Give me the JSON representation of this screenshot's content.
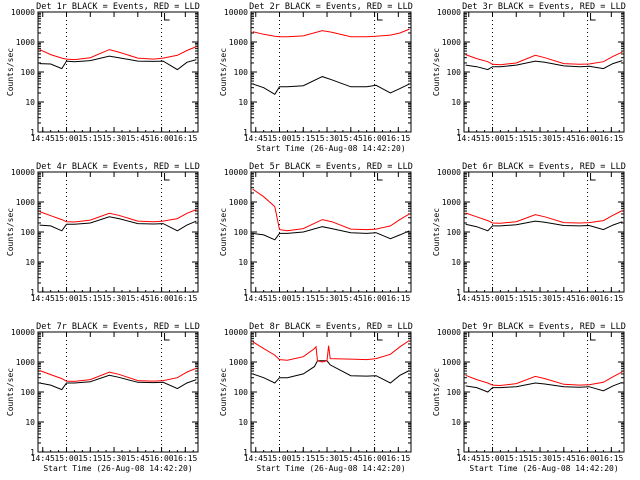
{
  "colors": {
    "events": "#000000",
    "lld": "#ff0000",
    "background": "#ffffff"
  },
  "chart_data": [
    {
      "type": "line",
      "title": "Det 1r BLACK = Events, RED = LLD",
      "xlabel": "",
      "ylabel": "Counts/sec",
      "yscale": "log",
      "ylim": [
        1,
        10000
      ],
      "xlim": [
        "14:42",
        "16:23"
      ],
      "x_tick_labels": [
        "14:45",
        "15:00",
        "15:15",
        "15:30",
        "15:45",
        "16:00",
        "16:15"
      ],
      "y_tick_labels": [
        "1",
        "10",
        "100",
        "1000",
        "10000"
      ],
      "dotted_lines": [
        "15:00",
        "16:00"
      ],
      "series": [
        {
          "name": "Events",
          "color": "#000000",
          "x": [
            "14:43",
            "14:50",
            "14:57",
            "15:00",
            "15:05",
            "15:15",
            "15:27",
            "15:33",
            "15:45",
            "15:55",
            "16:01",
            "16:10",
            "16:16",
            "16:22"
          ],
          "values": [
            190,
            185,
            130,
            230,
            220,
            240,
            340,
            300,
            230,
            225,
            230,
            120,
            210,
            260
          ]
        },
        {
          "name": "LLD",
          "color": "#ff0000",
          "x": [
            "14:43",
            "14:50",
            "14:57",
            "15:00",
            "15:05",
            "15:15",
            "15:27",
            "15:33",
            "15:45",
            "15:55",
            "16:01",
            "16:10",
            "16:16",
            "16:22"
          ],
          "values": [
            560,
            380,
            290,
            270,
            260,
            300,
            560,
            460,
            290,
            270,
            290,
            360,
            520,
            700
          ]
        }
      ]
    },
    {
      "type": "line",
      "title": "Det 2r BLACK = Events, RED = LLD",
      "xlabel": "Start Time (26-Aug-08 14:42:20)",
      "ylabel": "Counts/sec",
      "yscale": "log",
      "ylim": [
        1,
        10000
      ],
      "xlim": [
        "14:42",
        "16:23"
      ],
      "x_tick_labels": [
        "14:45",
        "15:00",
        "15:15",
        "15:30",
        "15:45",
        "16:00",
        "16:15"
      ],
      "y_tick_labels": [
        "1",
        "10",
        "100",
        "1000",
        "10000"
      ],
      "dotted_lines": [
        "15:00",
        "16:00"
      ],
      "series": [
        {
          "name": "Events",
          "color": "#000000",
          "x": [
            "14:43",
            "14:50",
            "14:57",
            "15:00",
            "15:05",
            "15:15",
            "15:27",
            "15:33",
            "15:45",
            "15:55",
            "16:01",
            "16:10",
            "16:16",
            "16:22"
          ],
          "values": [
            40,
            30,
            18,
            32,
            32,
            35,
            70,
            55,
            32,
            32,
            36,
            20,
            28,
            40
          ]
        },
        {
          "name": "LLD",
          "color": "#ff0000",
          "x": [
            "14:43",
            "14:50",
            "14:57",
            "15:00",
            "15:05",
            "15:15",
            "15:27",
            "15:33",
            "15:45",
            "15:55",
            "16:01",
            "16:10",
            "16:16",
            "16:22"
          ],
          "values": [
            2200,
            1800,
            1550,
            1500,
            1500,
            1600,
            2400,
            2100,
            1500,
            1500,
            1550,
            1700,
            2000,
            2700
          ]
        }
      ]
    },
    {
      "type": "line",
      "title": "Det 3r BLACK = Events, RED = LLD",
      "xlabel": "",
      "ylabel": "Counts/sec",
      "yscale": "log",
      "ylim": [
        1,
        10000
      ],
      "xlim": [
        "14:42",
        "16:23"
      ],
      "x_tick_labels": [
        "14:45",
        "15:00",
        "15:15",
        "15:30",
        "15:45",
        "16:00",
        "16:15"
      ],
      "y_tick_labels": [
        "1",
        "10",
        "100",
        "1000",
        "10000"
      ],
      "dotted_lines": [
        "15:00",
        "16:00"
      ],
      "series": [
        {
          "name": "Events",
          "color": "#000000",
          "x": [
            "14:43",
            "14:50",
            "14:57",
            "15:00",
            "15:05",
            "15:15",
            "15:27",
            "15:33",
            "15:45",
            "15:55",
            "16:01",
            "16:10",
            "16:16",
            "16:22"
          ],
          "values": [
            170,
            150,
            120,
            150,
            150,
            170,
            230,
            210,
            160,
            150,
            155,
            130,
            190,
            240
          ]
        },
        {
          "name": "LLD",
          "color": "#ff0000",
          "x": [
            "14:43",
            "14:50",
            "14:57",
            "15:00",
            "15:05",
            "15:15",
            "15:27",
            "15:33",
            "15:45",
            "15:55",
            "16:01",
            "16:10",
            "16:16",
            "16:22"
          ],
          "values": [
            380,
            280,
            220,
            180,
            175,
            200,
            360,
            300,
            190,
            180,
            185,
            220,
            330,
            460
          ]
        }
      ]
    },
    {
      "type": "line",
      "title": "Det 4r BLACK = Events, RED = LLD",
      "xlabel": "",
      "ylabel": "Counts/sec",
      "yscale": "log",
      "ylim": [
        1,
        10000
      ],
      "xlim": [
        "14:42",
        "16:23"
      ],
      "x_tick_labels": [
        "14:45",
        "15:00",
        "15:15",
        "15:30",
        "15:45",
        "16:00",
        "16:15"
      ],
      "y_tick_labels": [
        "1",
        "10",
        "100",
        "1000",
        "10000"
      ],
      "dotted_lines": [
        "15:00",
        "16:00"
      ],
      "series": [
        {
          "name": "Events",
          "color": "#000000",
          "x": [
            "14:43",
            "14:50",
            "14:57",
            "15:00",
            "15:05",
            "15:15",
            "15:27",
            "15:33",
            "15:45",
            "15:55",
            "16:01",
            "16:10",
            "16:16",
            "16:22"
          ],
          "values": [
            170,
            160,
            110,
            180,
            180,
            200,
            320,
            280,
            190,
            185,
            190,
            110,
            170,
            230
          ]
        },
        {
          "name": "LLD",
          "color": "#ff0000",
          "x": [
            "14:43",
            "14:50",
            "14:57",
            "15:00",
            "15:05",
            "15:15",
            "15:27",
            "15:33",
            "15:45",
            "15:55",
            "16:01",
            "16:10",
            "16:16",
            "16:22"
          ],
          "values": [
            480,
            350,
            260,
            220,
            215,
            250,
            420,
            360,
            230,
            220,
            230,
            280,
            420,
            560
          ]
        }
      ]
    },
    {
      "type": "line",
      "title": "Det 5r BLACK = Events, RED = LLD",
      "xlabel": "",
      "ylabel": "Counts/sec",
      "yscale": "log",
      "ylim": [
        1,
        10000
      ],
      "xlim": [
        "14:42",
        "16:23"
      ],
      "x_tick_labels": [
        "14:45",
        "15:00",
        "15:15",
        "15:30",
        "15:45",
        "16:00",
        "16:15"
      ],
      "y_tick_labels": [
        "1",
        "10",
        "100",
        "1000",
        "10000"
      ],
      "dotted_lines": [
        "15:00",
        "16:00"
      ],
      "series": [
        {
          "name": "Events",
          "color": "#000000",
          "x": [
            "14:43",
            "14:50",
            "14:57",
            "15:00",
            "15:05",
            "15:15",
            "15:27",
            "15:33",
            "15:45",
            "15:55",
            "16:01",
            "16:10",
            "16:16",
            "16:22"
          ],
          "values": [
            90,
            80,
            55,
            90,
            90,
            100,
            150,
            130,
            95,
            90,
            95,
            60,
            80,
            110
          ]
        },
        {
          "name": "LLD",
          "color": "#ff0000",
          "x": [
            "14:43",
            "14:50",
            "14:57",
            "15:00",
            "15:05",
            "15:15",
            "15:27",
            "15:33",
            "15:45",
            "15:55",
            "16:01",
            "16:10",
            "16:16",
            "16:22"
          ],
          "values": [
            2700,
            1500,
            700,
            120,
            110,
            130,
            260,
            220,
            125,
            120,
            125,
            160,
            260,
            400
          ]
        }
      ]
    },
    {
      "type": "line",
      "title": "Det 6r BLACK = Events, RED = LLD",
      "xlabel": "",
      "ylabel": "Counts/sec",
      "yscale": "log",
      "ylim": [
        1,
        10000
      ],
      "xlim": [
        "14:42",
        "16:23"
      ],
      "x_tick_labels": [
        "14:45",
        "15:00",
        "15:15",
        "15:30",
        "15:45",
        "16:00",
        "16:15"
      ],
      "y_tick_labels": [
        "1",
        "10",
        "100",
        "1000",
        "10000"
      ],
      "dotted_lines": [
        "15:00",
        "16:00"
      ],
      "series": [
        {
          "name": "Events",
          "color": "#000000",
          "x": [
            "14:43",
            "14:50",
            "14:57",
            "15:00",
            "15:05",
            "15:15",
            "15:27",
            "15:33",
            "15:45",
            "15:55",
            "16:01",
            "16:10",
            "16:16",
            "16:22"
          ],
          "values": [
            180,
            150,
            110,
            160,
            160,
            175,
            230,
            210,
            165,
            160,
            165,
            120,
            170,
            220
          ]
        },
        {
          "name": "LLD",
          "color": "#ff0000",
          "x": [
            "14:43",
            "14:50",
            "14:57",
            "15:00",
            "15:05",
            "15:15",
            "15:27",
            "15:33",
            "15:45",
            "15:55",
            "16:01",
            "16:10",
            "16:16",
            "16:22"
          ],
          "values": [
            430,
            320,
            240,
            200,
            195,
            220,
            380,
            320,
            205,
            200,
            205,
            240,
            360,
            520
          ]
        }
      ]
    },
    {
      "type": "line",
      "title": "Det 7r BLACK = Events, RED = LLD",
      "xlabel": "Start Time (26-Aug-08 14:42:20)",
      "ylabel": "Counts/sec",
      "yscale": "log",
      "ylim": [
        1,
        10000
      ],
      "xlim": [
        "14:42",
        "16:23"
      ],
      "x_tick_labels": [
        "14:45",
        "15:00",
        "15:15",
        "15:30",
        "15:45",
        "16:00",
        "16:15"
      ],
      "y_tick_labels": [
        "1",
        "10",
        "100",
        "1000",
        "10000"
      ],
      "dotted_lines": [
        "15:00",
        "16:00"
      ],
      "series": [
        {
          "name": "Events",
          "color": "#000000",
          "x": [
            "14:43",
            "14:50",
            "14:57",
            "15:00",
            "15:05",
            "15:15",
            "15:27",
            "15:33",
            "15:45",
            "15:55",
            "16:01",
            "16:10",
            "16:16",
            "16:22"
          ],
          "values": [
            200,
            170,
            120,
            200,
            200,
            220,
            360,
            310,
            210,
            205,
            210,
            130,
            200,
            260
          ]
        },
        {
          "name": "LLD",
          "color": "#ff0000",
          "x": [
            "14:43",
            "14:50",
            "14:57",
            "15:00",
            "15:05",
            "15:15",
            "15:27",
            "15:33",
            "15:45",
            "15:55",
            "16:01",
            "16:10",
            "16:16",
            "16:22"
          ],
          "values": [
            520,
            380,
            280,
            230,
            225,
            260,
            460,
            390,
            240,
            230,
            240,
            300,
            460,
            620
          ]
        }
      ]
    },
    {
      "type": "line",
      "title": "Det 8r BLACK = Events, RED = LLD",
      "xlabel": "Start Time (26-Aug-08 14:42:20)",
      "ylabel": "Counts/sec",
      "yscale": "log",
      "ylim": [
        1,
        10000
      ],
      "xlim": [
        "14:42",
        "16:23"
      ],
      "x_tick_labels": [
        "14:45",
        "15:00",
        "15:15",
        "15:30",
        "15:45",
        "16:00",
        "16:15"
      ],
      "y_tick_labels": [
        "1",
        "10",
        "100",
        "1000",
        "10000"
      ],
      "dotted_lines": [
        "15:00",
        "16:00"
      ],
      "series": [
        {
          "name": "Events",
          "color": "#000000",
          "x": [
            "14:43",
            "14:50",
            "14:57",
            "15:00",
            "15:05",
            "15:15",
            "15:22",
            "15:24",
            "15:27",
            "15:30",
            "15:32",
            "15:45",
            "15:55",
            "16:01",
            "16:10",
            "16:16",
            "16:22"
          ],
          "values": [
            400,
            300,
            200,
            300,
            300,
            400,
            700,
            1100,
            1100,
            1100,
            800,
            350,
            340,
            350,
            200,
            360,
            520
          ]
        },
        {
          "name": "LLD",
          "color": "#ff0000",
          "x": [
            "14:43",
            "14:50",
            "14:57",
            "15:00",
            "15:05",
            "15:15",
            "15:22",
            "15:23",
            "15:24",
            "15:27",
            "15:30",
            "15:31",
            "15:32",
            "15:45",
            "15:55",
            "16:01",
            "16:10",
            "16:16",
            "16:22"
          ],
          "values": [
            4800,
            2800,
            1700,
            1200,
            1150,
            1500,
            2800,
            3200,
            1100,
            1000,
            1100,
            3500,
            1300,
            1250,
            1200,
            1300,
            1800,
            3200,
            5200
          ]
        }
      ]
    },
    {
      "type": "line",
      "title": "Det 9r BLACK = Events, RED = LLD",
      "xlabel": "Start Time (26-Aug-08 14:42:20)",
      "ylabel": "Counts/sec",
      "yscale": "log",
      "ylim": [
        1,
        10000
      ],
      "xlim": [
        "14:42",
        "16:23"
      ],
      "x_tick_labels": [
        "14:45",
        "15:00",
        "15:15",
        "15:30",
        "15:45",
        "16:00",
        "16:15"
      ],
      "y_tick_labels": [
        "1",
        "10",
        "100",
        "1000",
        "10000"
      ],
      "dotted_lines": [
        "15:00",
        "16:00"
      ],
      "series": [
        {
          "name": "Events",
          "color": "#000000",
          "x": [
            "14:43",
            "14:50",
            "14:57",
            "15:00",
            "15:05",
            "15:15",
            "15:27",
            "15:33",
            "15:45",
            "15:55",
            "16:01",
            "16:10",
            "16:16",
            "16:22"
          ],
          "values": [
            160,
            140,
            100,
            140,
            140,
            150,
            200,
            185,
            150,
            145,
            150,
            110,
            160,
            210
          ]
        },
        {
          "name": "LLD",
          "color": "#ff0000",
          "x": [
            "14:43",
            "14:50",
            "14:57",
            "15:00",
            "15:05",
            "15:15",
            "15:27",
            "15:33",
            "15:45",
            "15:55",
            "16:01",
            "16:10",
            "16:16",
            "16:22"
          ],
          "values": [
            360,
            260,
            200,
            170,
            165,
            190,
            330,
            280,
            180,
            170,
            175,
            210,
            320,
            470
          ]
        }
      ]
    }
  ]
}
